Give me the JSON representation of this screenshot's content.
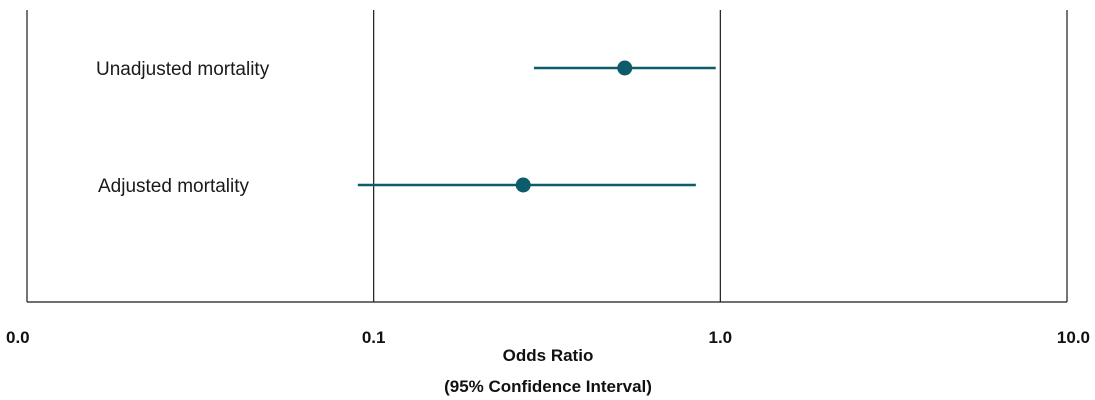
{
  "chart_data": {
    "type": "forest",
    "scale": "log",
    "xlim": [
      0.01,
      10.0
    ],
    "xticks": [
      {
        "value": 0.01,
        "label": "0.0"
      },
      {
        "value": 0.1,
        "label": "0.1"
      },
      {
        "value": 1.0,
        "label": "1.0"
      },
      {
        "value": 10.0,
        "label": "10.0"
      }
    ],
    "xlabel_lines": [
      "Odds Ratio",
      "(95% Confidence Interval)"
    ],
    "grid_vertical": true,
    "marker_color": "#0d5c6b",
    "rows": [
      {
        "label": "Unadjusted mortality",
        "estimate": 0.53,
        "lower": 0.29,
        "upper": 0.97
      },
      {
        "label": "Adjusted mortality",
        "estimate": 0.27,
        "lower": 0.09,
        "upper": 0.85
      }
    ]
  }
}
